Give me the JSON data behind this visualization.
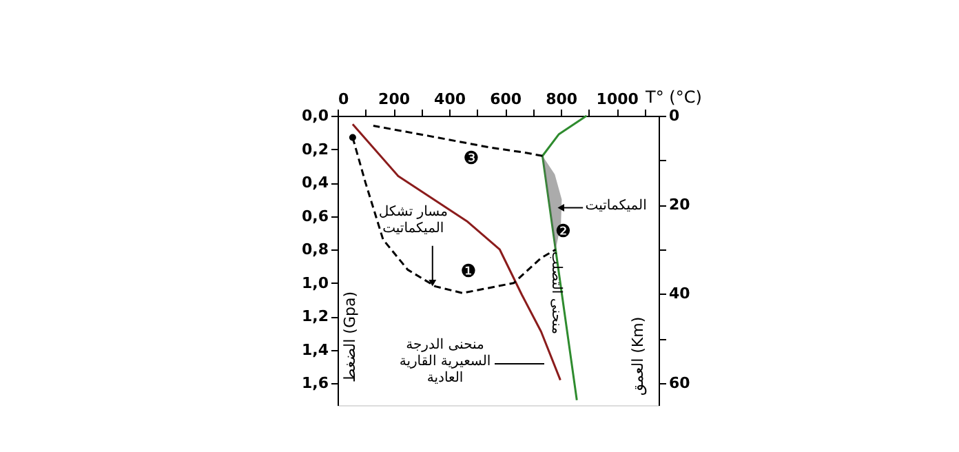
{
  "chart_data": {
    "type": "line",
    "xlabel": "T° (°C)",
    "ylabel": "الضغط (Gpa)",
    "y2label": "العمق (Km)",
    "xlim": [
      0,
      1150
    ],
    "xticks": [
      {
        "value": 0,
        "label": "0"
      },
      {
        "value": 100,
        "label": null
      },
      {
        "value": 200,
        "label": "200"
      },
      {
        "value": 300,
        "label": null
      },
      {
        "value": 400,
        "label": "400"
      },
      {
        "value": 500,
        "label": null
      },
      {
        "value": 600,
        "label": "600"
      },
      {
        "value": 700,
        "label": null
      },
      {
        "value": 800,
        "label": "800"
      },
      {
        "value": 900,
        "label": null
      },
      {
        "value": 1000,
        "label": "1000"
      },
      {
        "value": 1100,
        "label": null
      }
    ],
    "ylim": [
      1.73,
      0
    ],
    "yticks": [
      {
        "value": 0,
        "label": "0,0"
      },
      {
        "value": 0.2,
        "label": "0,2"
      },
      {
        "value": 0.4,
        "label": "0,4"
      },
      {
        "value": 0.6,
        "label": "0,6"
      },
      {
        "value": 0.8,
        "label": "0,8"
      },
      {
        "value": 1.0,
        "label": "1,0"
      },
      {
        "value": 1.2,
        "label": "1,2"
      },
      {
        "value": 1.4,
        "label": "1,4"
      },
      {
        "value": 1.6,
        "label": "1,6"
      }
    ],
    "y2lim": [
      65,
      0
    ],
    "y2ticks": [
      {
        "value": 0,
        "label": "0"
      },
      {
        "value": 10,
        "label": null
      },
      {
        "value": 20,
        "label": "20"
      },
      {
        "value": 30,
        "label": null
      },
      {
        "value": 40,
        "label": "40"
      },
      {
        "value": 50,
        "label": null
      },
      {
        "value": 60,
        "label": "60"
      }
    ],
    "grid": false,
    "series": [
      {
        "color": "#8b1c1c",
        "line_style": "solid",
        "x": [
          54,
          217,
          463,
          581,
          660,
          729,
          798
        ],
        "values": [
          0.05,
          0.36,
          0.63,
          0.8,
          1.07,
          1.29,
          1.58
        ]
      },
      {
        "color": "#2e8b2e",
        "line_style": "solid",
        "x": [
          892,
          793,
          734,
          781,
          857
        ],
        "values": [
          0,
          0.11,
          0.24,
          0.8,
          1.7
        ]
      },
      {
        "type": "line",
        "color": "#000000",
        "line_style": "dashed",
        "x": [
          54,
          100,
          163,
          251,
          350,
          448,
          631,
          729,
          781
        ],
        "values": [
          0.13,
          0.4,
          0.74,
          0.92,
          1.02,
          1.06,
          1.0,
          0.85,
          0.8
        ]
      },
      {
        "type": "line",
        "color": "#000000",
        "line_style": "dashed",
        "x": [
          734,
          670,
          547,
          325,
          128
        ],
        "values": [
          0.24,
          0.22,
          0.19,
          0.12,
          0.06
        ]
      },
      {
        "type": "scatter",
        "color": "#000000",
        "x": [
          54
        ],
        "values": [
          0.13
        ]
      },
      {
        "type": "area",
        "color": "#666666",
        "x": [
          734,
          778,
          803,
          800,
          781,
          768,
          756,
          743
        ],
        "values": [
          0.24,
          0.35,
          0.5,
          0.65,
          0.8,
          0.65,
          0.5,
          0.35
        ]
      }
    ],
    "annotations": [
      "❸",
      {
        "text": "❷",
        "x": 808,
        "y": 0.69
      },
      "❶",
      {
        "text": "الميكماتيت",
        "x": 800,
        "y": 0.55
      },
      {
        "text": "مسار تشكل\nالميكماتيت",
        "x": 340,
        "y": 1.0
      },
      "منحنى الدرجة\nالسعيرية القارية\nالعادية",
      {
        "text": "منحنى التصلب",
        "x": 814,
        "y": 0.96
      }
    ]
  }
}
